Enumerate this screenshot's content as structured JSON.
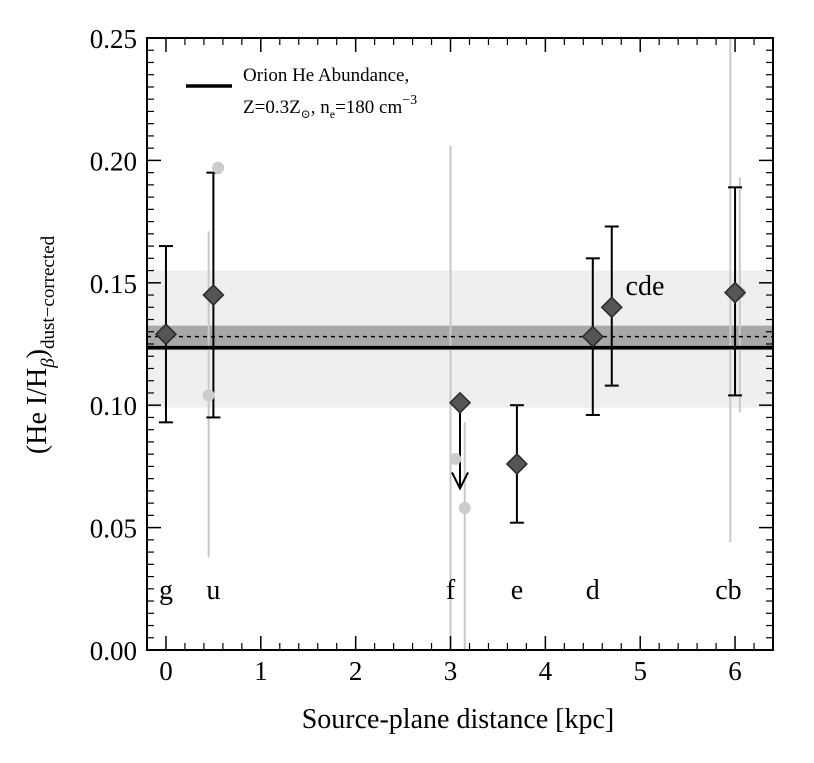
{
  "chart_data": {
    "type": "scatter",
    "xlabel": "Source-plane distance [kpc]",
    "ylabel": {
      "prefix": "(He I/H",
      "sub_beta": "β",
      "close": ")",
      "sub": "dust−corrected"
    },
    "xlim": [
      -0.2,
      6.4
    ],
    "ylim": [
      0.0,
      0.25
    ],
    "xticks": [
      0,
      1,
      2,
      3,
      4,
      5,
      6
    ],
    "xtick_labels": [
      "0",
      "1",
      "2",
      "3",
      "4",
      "5",
      "6"
    ],
    "yticks": [
      0.0,
      0.05,
      0.1,
      0.15,
      0.2,
      0.25
    ],
    "ytick_labels": [
      "0.00",
      "0.05",
      "0.10",
      "0.15",
      "0.20",
      "0.25"
    ],
    "grid": false,
    "legend": {
      "position": "top-left",
      "line1": "Orion He Abundance,",
      "line2_a": "Z=0.3Z",
      "line2_sun": "⊙",
      "line2_b": ", n",
      "line2_e": "e",
      "line2_c": "=180 cm",
      "line2_exp": "−3"
    },
    "bands": [
      {
        "name": "outer-band",
        "ymin": 0.099,
        "ymax": 0.155,
        "color": "#efefef"
      },
      {
        "name": "inner-band",
        "ymin": 0.1225,
        "ymax": 0.1325,
        "color": "#a8a8a8"
      }
    ],
    "reference_lines": [
      {
        "name": "orion-line",
        "y": 0.1235,
        "style": "solid",
        "color": "#000000"
      },
      {
        "name": "dotted-line",
        "y": 0.128,
        "style": "dotted",
        "color": "#000000"
      }
    ],
    "series": [
      {
        "points": [
          {
            "x": 0.0,
            "y": 0.129,
            "err_low": 0.093,
            "err_high": 0.165
          },
          {
            "x": 0.5,
            "y": 0.145,
            "err_low": 0.095,
            "err_high": 0.195
          },
          {
            "x": 4.5,
            "y": 0.128,
            "err_low": 0.096,
            "err_high": 0.16
          },
          {
            "x": 4.7,
            "y": 0.14,
            "err_low": 0.108,
            "err_high": 0.173
          },
          {
            "x": 6.0,
            "y": 0.146,
            "err_low": 0.104,
            "err_high": 0.189
          },
          {
            "x": 3.7,
            "y": 0.076,
            "err_low": 0.052,
            "err_high": 0.1
          },
          {
            "x": 3.1,
            "y": 0.101,
            "upper_limit": true,
            "arrow_to": 0.066
          }
        ],
        "color": "#555555"
      },
      {
        "points": [
          {
            "x": 0.55,
            "y": 0.197
          },
          {
            "x": 0.45,
            "y": 0.104
          },
          {
            "x": 3.05,
            "y": 0.078
          },
          {
            "x": 3.15,
            "y": 0.058
          },
          {
            "x": 6.05,
            "y": 0.146
          }
        ],
        "color": "#cccccc"
      }
    ],
    "gray_error_bars": [
      {
        "x": 0.45,
        "y1": 0.038,
        "y2": 0.171
      },
      {
        "x": 3.0,
        "y1": 0.0,
        "y2": 0.206
      },
      {
        "x": 3.15,
        "y1": 0.0,
        "y2": 0.093
      },
      {
        "x": 5.95,
        "y1": 0.044,
        "y2": 0.25
      },
      {
        "x": 6.05,
        "y1": 0.097,
        "y2": 0.193
      }
    ],
    "annotations": [
      {
        "text": "g",
        "x": 0.0,
        "y": 0.025
      },
      {
        "text": "u",
        "x": 0.5,
        "y": 0.025
      },
      {
        "text": "f",
        "x": 3.0,
        "y": 0.025
      },
      {
        "text": "e",
        "x": 3.7,
        "y": 0.025
      },
      {
        "text": "d",
        "x": 4.5,
        "y": 0.025
      },
      {
        "text": "cb",
        "x": 5.93,
        "y": 0.025
      },
      {
        "text": "cde",
        "x": 5.05,
        "y": 0.149
      }
    ]
  }
}
